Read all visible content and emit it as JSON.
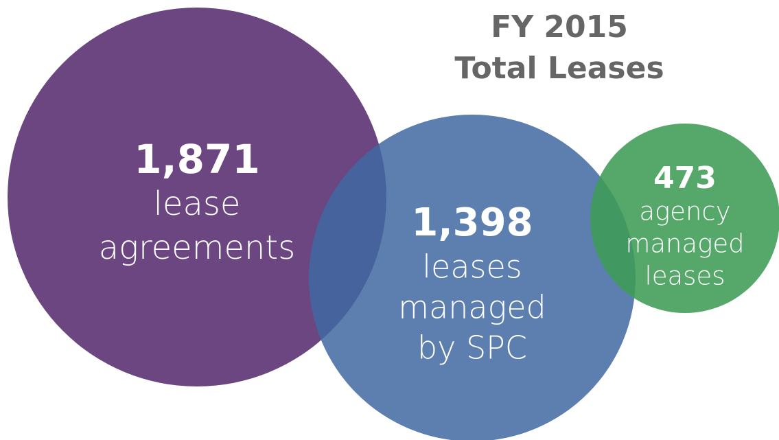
{
  "title": [
    "FY 2015",
    "Total Leases"
  ],
  "bubbles": [
    {
      "number": "1,871",
      "lines": [
        "lease",
        "agreements"
      ]
    },
    {
      "number": "1,398",
      "lines": [
        "leases",
        "managed",
        "by SPC"
      ]
    },
    {
      "number": "473",
      "lines": [
        "agency",
        "managed",
        "leases"
      ]
    }
  ]
}
